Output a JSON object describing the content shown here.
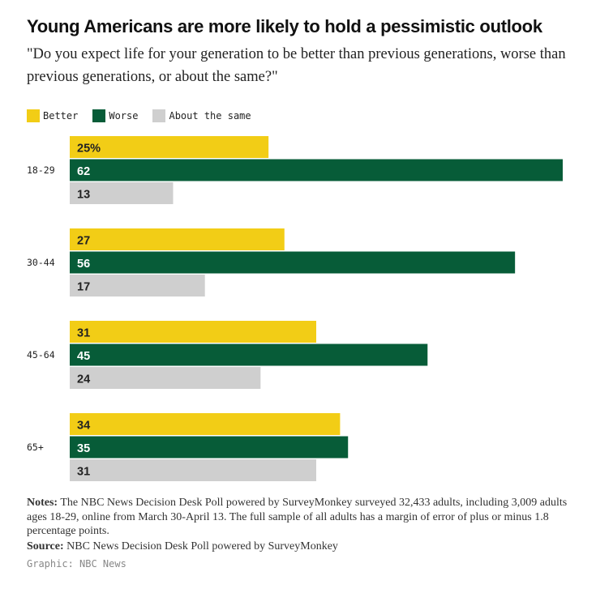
{
  "title": "Young Americans are more likely to hold a pessimistic outlook",
  "subtitle": "\"Do you expect life for your generation to be better than previous generations, worse than previous generations, or about the same?\"",
  "colors": {
    "better": "#f2cd16",
    "worse": "#075c38",
    "same": "#cfcfcf"
  },
  "chart_data": {
    "type": "bar",
    "orientation": "horizontal",
    "categories": [
      "18-29",
      "30-44",
      "45-64",
      "65+"
    ],
    "series": [
      {
        "name": "Better",
        "values": [
          25,
          27,
          31,
          34
        ]
      },
      {
        "name": "Worse",
        "values": [
          62,
          56,
          45,
          35
        ]
      },
      {
        "name": "About the same",
        "values": [
          13,
          17,
          24,
          31
        ]
      }
    ],
    "value_suffix_first": "%",
    "xlim": [
      0,
      62
    ],
    "grid": false,
    "legend": "top-left"
  },
  "notes": {
    "label": "Notes:",
    "text": "The NBC News Decision Desk Poll powered by SurveyMonkey surveyed 32,433 adults, including 3,009 adults ages 18-29, online from March 30-April 13. The full sample of all adults has a margin of error of plus or minus 1.8 percentage points."
  },
  "source": {
    "label": "Source:",
    "text": "NBC News Decision Desk Poll powered by SurveyMonkey"
  },
  "credit": "Graphic: NBC News"
}
